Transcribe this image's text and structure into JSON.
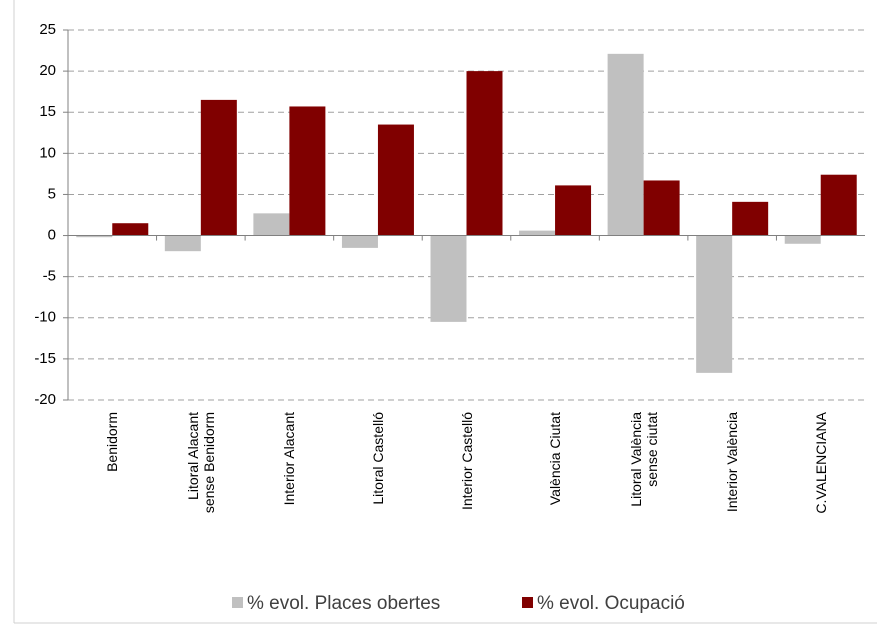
{
  "chart_data": {
    "type": "bar",
    "categories": [
      "Benidorm",
      "Litoral Alacant\nsense Benidorm",
      "Interior Alacant",
      "Litoral Castelló",
      "Interior Castelló",
      "València Ciutat",
      "Litoral València\nsense ciutat",
      "Interior València",
      "C.VALENCIANA"
    ],
    "series": [
      {
        "name": "% evol. Places obertes",
        "color": "#c0c0c0",
        "values": [
          -0.2,
          -1.9,
          2.7,
          -1.5,
          -10.5,
          0.6,
          22.1,
          -16.7,
          -1.0
        ]
      },
      {
        "name": "% evol. Ocupació",
        "color": "#800000",
        "values": [
          1.5,
          16.5,
          15.7,
          13.5,
          20.0,
          6.1,
          6.7,
          4.1,
          7.4
        ]
      }
    ],
    "ylim": [
      -20,
      25
    ],
    "yticks": [
      -20,
      -15,
      -10,
      -5,
      0,
      5,
      10,
      15,
      20,
      25
    ],
    "grid": true,
    "legend": "bottom"
  }
}
